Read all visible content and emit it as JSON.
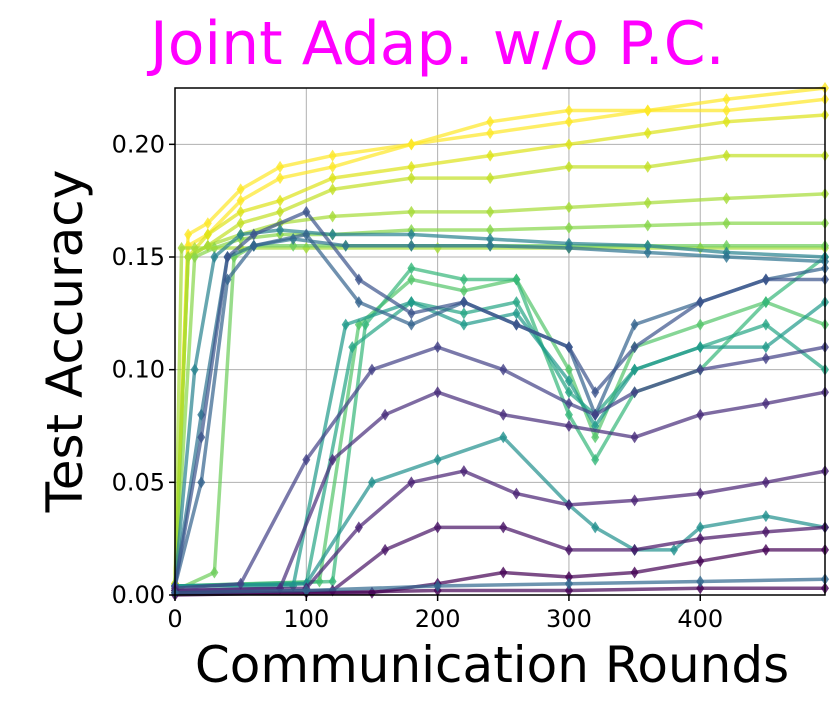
{
  "chart_data": {
    "type": "line",
    "title": "Joint Adap. w/o P.C.",
    "title_color": "#ff00ff",
    "xlabel": "Communication Rounds",
    "ylabel": "Test Accuracy",
    "xlim": [
      0,
      495
    ],
    "ylim": [
      0,
      0.225
    ],
    "xticks": [
      0,
      100,
      200,
      300,
      400
    ],
    "xtick_labels": [
      "0",
      "100",
      "200",
      "300",
      "400"
    ],
    "yticks": [
      0,
      0.05,
      0.1,
      0.15,
      0.2
    ],
    "ytick_labels": [
      "0.00",
      "0.05",
      "0.10",
      "0.15",
      "0.20"
    ],
    "grid": true,
    "colormap": "viridis",
    "marker": "diamond",
    "series": [
      {
        "color": "#fde725",
        "x": [
          0,
          10,
          25,
          50,
          80,
          120,
          180,
          240,
          300,
          360,
          420,
          495
        ],
        "values": [
          0.005,
          0.16,
          0.165,
          0.18,
          0.19,
          0.195,
          0.2,
          0.21,
          0.215,
          0.215,
          0.22,
          0.225
        ]
      },
      {
        "color": "#fde725",
        "x": [
          0,
          10,
          25,
          50,
          80,
          120,
          180,
          240,
          300,
          360,
          420,
          495
        ],
        "values": [
          0.005,
          0.155,
          0.16,
          0.175,
          0.185,
          0.19,
          0.2,
          0.205,
          0.21,
          0.215,
          0.215,
          0.22
        ]
      },
      {
        "color": "#dde318",
        "x": [
          0,
          10,
          25,
          50,
          80,
          120,
          180,
          240,
          300,
          360,
          420,
          495
        ],
        "values": [
          0.005,
          0.15,
          0.16,
          0.17,
          0.175,
          0.185,
          0.19,
          0.195,
          0.2,
          0.205,
          0.21,
          0.213
        ]
      },
      {
        "color": "#c2df23",
        "x": [
          0,
          10,
          25,
          50,
          80,
          120,
          180,
          240,
          300,
          360,
          420,
          495
        ],
        "values": [
          0.005,
          0.15,
          0.155,
          0.165,
          0.17,
          0.18,
          0.185,
          0.185,
          0.19,
          0.19,
          0.195,
          0.195
        ]
      },
      {
        "color": "#a5db36",
        "x": [
          0,
          10,
          25,
          50,
          80,
          120,
          180,
          240,
          300,
          360,
          420,
          495
        ],
        "values": [
          0.004,
          0.15,
          0.155,
          0.16,
          0.165,
          0.168,
          0.17,
          0.17,
          0.172,
          0.174,
          0.176,
          0.178
        ]
      },
      {
        "color": "#86d549",
        "x": [
          0,
          15,
          30,
          50,
          80,
          120,
          180,
          240,
          300,
          360,
          420,
          495
        ],
        "values": [
          0.004,
          0.15,
          0.154,
          0.158,
          0.16,
          0.16,
          0.162,
          0.162,
          0.163,
          0.164,
          0.165,
          0.165
        ]
      },
      {
        "color": "#a5db36",
        "x": [
          0,
          5,
          15,
          50,
          100,
          200,
          300,
          400,
          495
        ],
        "values": [
          0.003,
          0.154,
          0.154,
          0.154,
          0.154,
          0.154,
          0.154,
          0.154,
          0.154
        ]
      },
      {
        "color": "#6ccd5a",
        "x": [
          0,
          30,
          45,
          60,
          90,
          130,
          180,
          240,
          300,
          360,
          420,
          495
        ],
        "values": [
          0.002,
          0.01,
          0.15,
          0.155,
          0.155,
          0.155,
          0.155,
          0.155,
          0.155,
          0.155,
          0.155,
          0.155
        ]
      },
      {
        "color": "#52c569",
        "x": [
          0,
          110,
          140,
          180,
          220,
          260,
          300,
          320,
          350,
          400,
          450,
          495
        ],
        "values": [
          0.004,
          0.006,
          0.12,
          0.14,
          0.135,
          0.14,
          0.1,
          0.07,
          0.11,
          0.12,
          0.13,
          0.12
        ]
      },
      {
        "color": "#35b779",
        "x": [
          0,
          120,
          145,
          180,
          220,
          260,
          300,
          320,
          350,
          400,
          450,
          495
        ],
        "values": [
          0.004,
          0.006,
          0.12,
          0.145,
          0.14,
          0.14,
          0.08,
          0.06,
          0.09,
          0.1,
          0.13,
          0.15
        ]
      },
      {
        "color": "#25a584",
        "x": [
          0,
          100,
          135,
          180,
          220,
          260,
          300,
          320,
          350,
          400,
          450,
          495
        ],
        "values": [
          0.004,
          0.005,
          0.11,
          0.13,
          0.125,
          0.13,
          0.09,
          0.08,
          0.1,
          0.11,
          0.12,
          0.1
        ]
      },
      {
        "color": "#1f9a8a",
        "x": [
          0,
          90,
          130,
          180,
          220,
          260,
          300,
          320,
          350,
          400,
          450,
          495
        ],
        "values": [
          0.004,
          0.004,
          0.12,
          0.13,
          0.12,
          0.125,
          0.095,
          0.075,
          0.1,
          0.11,
          0.11,
          0.13
        ]
      },
      {
        "color": "#21908d",
        "x": [
          0,
          100,
          150,
          200,
          250,
          300,
          320,
          350,
          380,
          400,
          450,
          495
        ],
        "values": [
          0.004,
          0.005,
          0.05,
          0.06,
          0.07,
          0.04,
          0.03,
          0.02,
          0.02,
          0.03,
          0.035,
          0.03
        ]
      },
      {
        "color": "#26828e",
        "x": [
          0,
          15,
          30,
          50,
          80,
          120,
          180,
          240,
          300,
          360,
          420,
          495
        ],
        "values": [
          0.004,
          0.1,
          0.15,
          0.16,
          0.162,
          0.16,
          0.16,
          0.158,
          0.156,
          0.155,
          0.152,
          0.15
        ]
      },
      {
        "color": "#2c728e",
        "x": [
          0,
          20,
          40,
          60,
          90,
          130,
          180,
          240,
          300,
          360,
          420,
          495
        ],
        "values": [
          0.004,
          0.08,
          0.15,
          0.155,
          0.158,
          0.155,
          0.155,
          0.155,
          0.154,
          0.152,
          0.15,
          0.148
        ]
      },
      {
        "color": "#33638d",
        "x": [
          0,
          20,
          40,
          60,
          100,
          140,
          180,
          220,
          260,
          300,
          320,
          350,
          400,
          450,
          495
        ],
        "values": [
          0.004,
          0.05,
          0.14,
          0.155,
          0.16,
          0.13,
          0.12,
          0.13,
          0.12,
          0.11,
          0.08,
          0.12,
          0.13,
          0.14,
          0.145
        ]
      },
      {
        "color": "#3b528b",
        "x": [
          0,
          20,
          40,
          60,
          100,
          140,
          180,
          220,
          260,
          300,
          320,
          350,
          400,
          450,
          495
        ],
        "values": [
          0.004,
          0.07,
          0.15,
          0.16,
          0.17,
          0.14,
          0.125,
          0.13,
          0.12,
          0.11,
          0.09,
          0.11,
          0.13,
          0.14,
          0.14
        ]
      },
      {
        "color": "#424086",
        "x": [
          0,
          50,
          100,
          150,
          200,
          250,
          300,
          320,
          350,
          400,
          450,
          495
        ],
        "values": [
          0.003,
          0.005,
          0.06,
          0.1,
          0.11,
          0.1,
          0.085,
          0.08,
          0.09,
          0.1,
          0.105,
          0.11
        ]
      },
      {
        "color": "#472c7a",
        "x": [
          0,
          80,
          120,
          160,
          200,
          250,
          300,
          350,
          400,
          450,
          495
        ],
        "values": [
          0.002,
          0.003,
          0.06,
          0.08,
          0.09,
          0.08,
          0.075,
          0.07,
          0.08,
          0.085,
          0.09
        ]
      },
      {
        "color": "#482173",
        "x": [
          0,
          100,
          140,
          180,
          220,
          260,
          300,
          350,
          400,
          450,
          495
        ],
        "values": [
          0.002,
          0.003,
          0.03,
          0.05,
          0.055,
          0.045,
          0.04,
          0.042,
          0.045,
          0.05,
          0.055
        ]
      },
      {
        "color": "#471365",
        "x": [
          0,
          120,
          160,
          200,
          250,
          300,
          350,
          400,
          450,
          495
        ],
        "values": [
          0.001,
          0.002,
          0.02,
          0.03,
          0.03,
          0.02,
          0.02,
          0.025,
          0.028,
          0.03
        ]
      },
      {
        "color": "#440154",
        "x": [
          0,
          150,
          200,
          250,
          300,
          350,
          400,
          450,
          495
        ],
        "values": [
          0.001,
          0.001,
          0.005,
          0.01,
          0.008,
          0.01,
          0.015,
          0.02,
          0.02
        ]
      },
      {
        "color": "#440154",
        "x": [
          0,
          100,
          200,
          300,
          400,
          495
        ],
        "values": [
          0.0,
          0.001,
          0.002,
          0.002,
          0.003,
          0.003
        ]
      },
      {
        "color": "#31688e",
        "x": [
          0,
          100,
          200,
          300,
          400,
          495
        ],
        "values": [
          0.001,
          0.002,
          0.004,
          0.005,
          0.006,
          0.007
        ]
      }
    ]
  }
}
